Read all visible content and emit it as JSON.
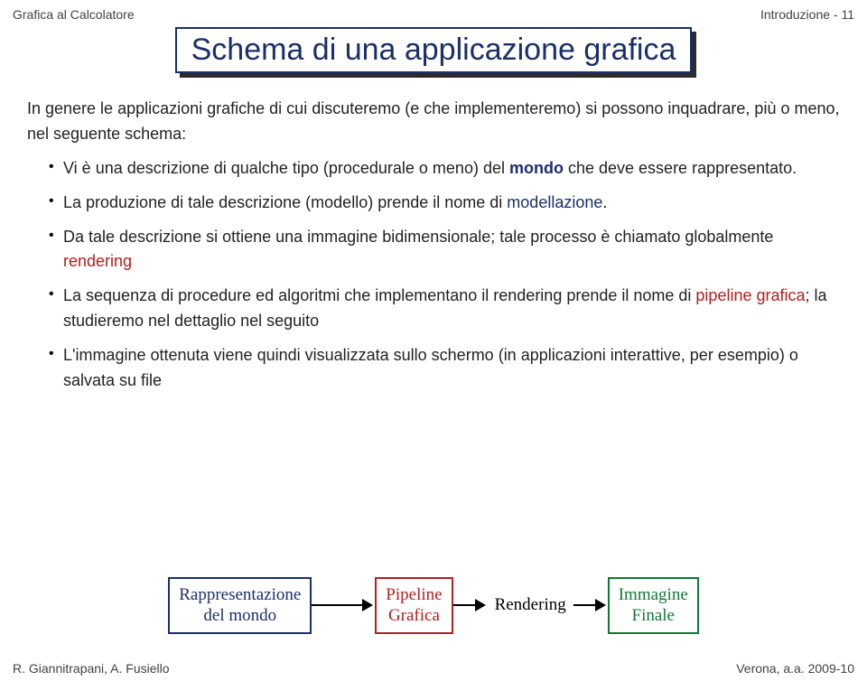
{
  "header": {
    "left": "Grafica al Calcolatore",
    "right": "Introduzione - 11"
  },
  "title": "Schema di una applicazione grafica",
  "intro": "In genere le applicazioni grafiche di cui discuteremo (e che implementeremo) si possono inquadrare, più o meno, nel seguente schema:",
  "bullets": {
    "b1a": "Vi è una descrizione di qualche tipo (procedurale o meno) del ",
    "b1_kw": "mondo",
    "b1b": " che deve essere rappresentato.",
    "b2a": "La produzione di tale descrizione (modello) prende il nome di ",
    "b2_kw": "modellazione",
    "b2b": ".",
    "b3a": "Da tale descrizione si ottiene una immagine bidimensionale; tale processo è chiamato globalmente ",
    "b3_kw": "rendering",
    "b4a": "La sequenza di procedure ed algoritmi che implementano il rendering prende il nome di ",
    "b4_kw": "pipeline grafica",
    "b4b": "; la studieremo nel dettaglio nel seguito",
    "b5": "L'immagine ottenuta viene quindi visualizzata sullo schermo (in applicazioni interattive, per esempio) o salvata su file"
  },
  "flow": {
    "box1_l1": "Rappresentazione",
    "box1_l2": "del mondo",
    "box2_l1": "Pipeline",
    "box2_l2": "Grafica",
    "label": "Rendering",
    "box3_l1": "Immagine",
    "box3_l2": "Finale",
    "colors": {
      "blue": "#1a2f6b",
      "red": "#b22020",
      "green": "#0f7a34",
      "arrow": "#000000"
    }
  },
  "footer": {
    "left": "R. Giannitrapani, A. Fusiello",
    "right": "Verona, a.a. 2009-10"
  }
}
